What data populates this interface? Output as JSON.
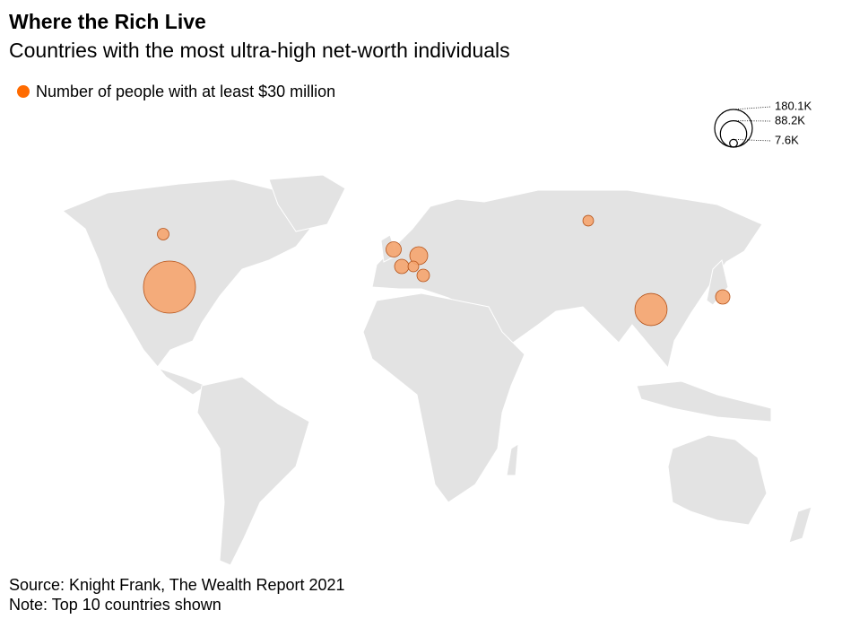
{
  "chart_data": {
    "type": "bubble-map",
    "title": "Where the Rich Live",
    "subtitle": "Countries with the most ultra-high net-worth individuals",
    "series": [
      {
        "name": "Number of people with at least $30 million",
        "color": "#f5a46e",
        "values": [
          180100,
          69000,
          21400,
          15500,
          13700,
          13700,
          10500,
          9000,
          7700,
          7600
        ]
      }
    ],
    "size_legend": [
      {
        "value": 180100,
        "label": "180.1K"
      },
      {
        "value": 88200,
        "label": "88.2K"
      },
      {
        "value": 7600,
        "label": "7.6K"
      }
    ],
    "source": "Source: Knight Frank, The Wealth Report 2021",
    "note": "Note: Top 10 countries shown"
  }
}
